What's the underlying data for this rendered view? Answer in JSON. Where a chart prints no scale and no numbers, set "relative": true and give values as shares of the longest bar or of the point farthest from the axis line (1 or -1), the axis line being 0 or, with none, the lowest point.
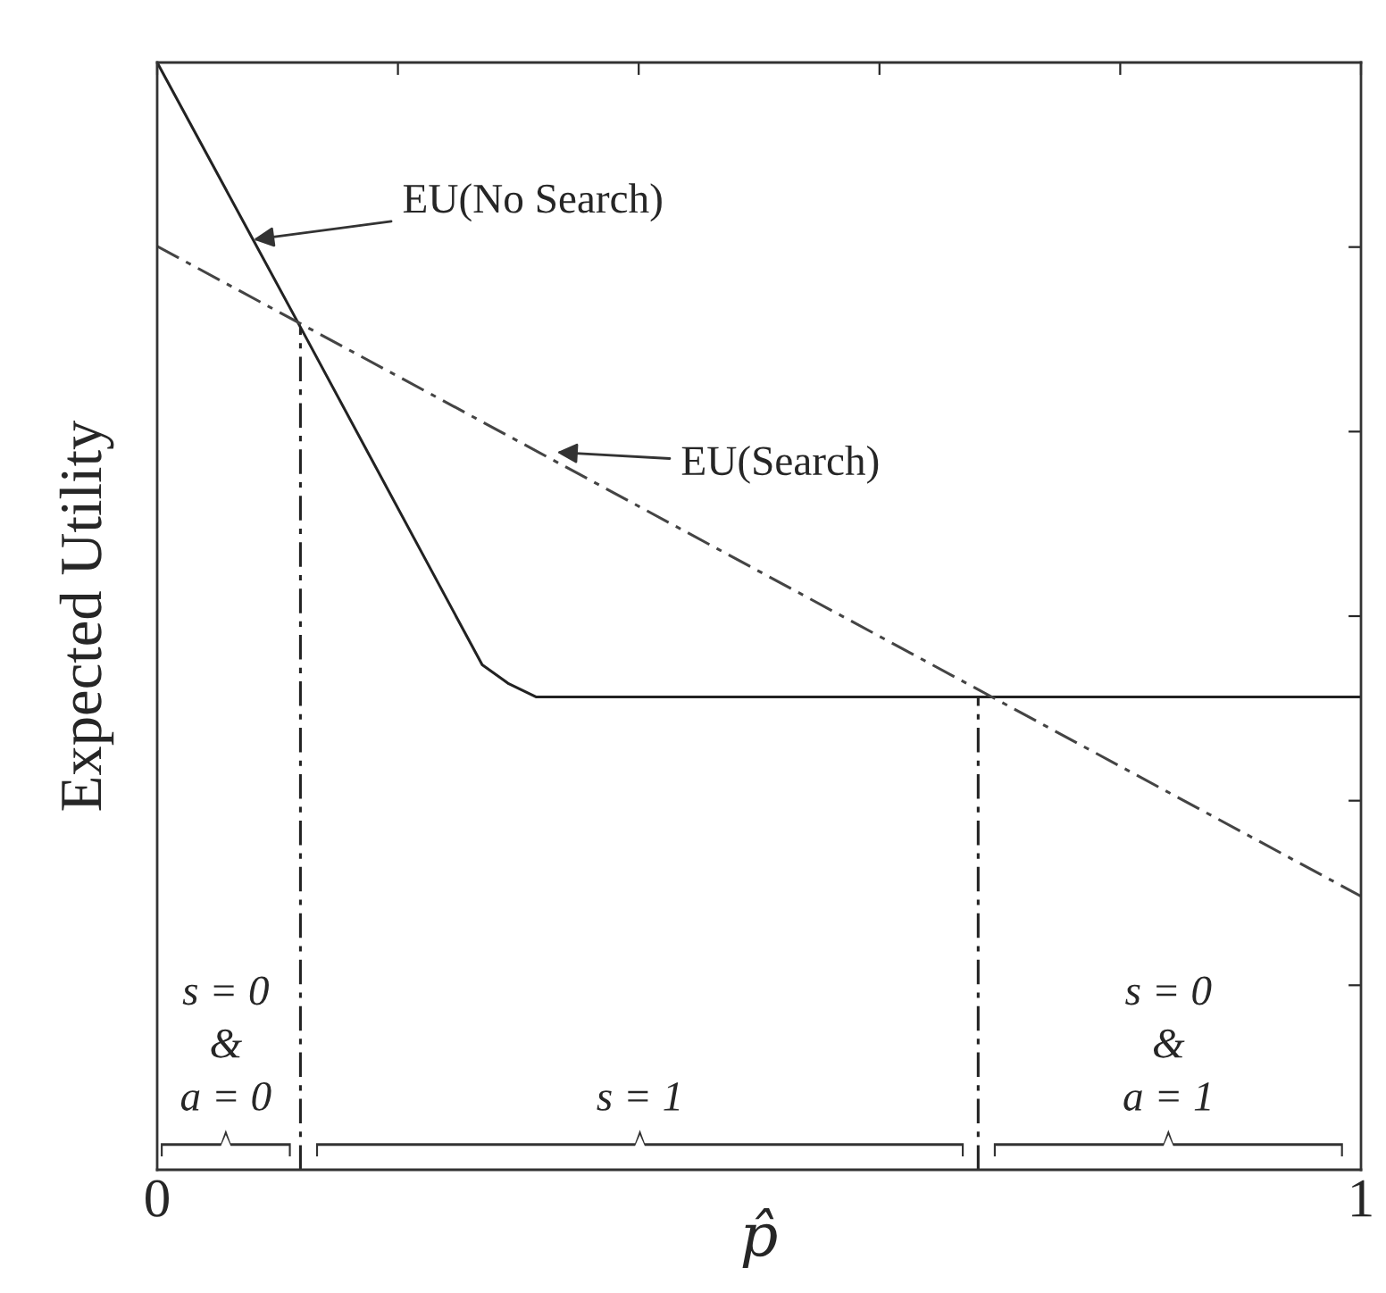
{
  "chart_data": {
    "type": "line",
    "relative": true,
    "xlabel": "p̂",
    "ylabel": "Expected Utility",
    "xlim": [
      0,
      1
    ],
    "xticks": [
      0,
      {
        "value": 0.2,
        "label": null
      },
      {
        "value": 0.4,
        "label": null
      },
      {
        "value": 0.6,
        "label": null
      },
      {
        "value": 0.8,
        "label": null
      },
      1
    ],
    "grid": false,
    "marker": "none",
    "series": [
      {
        "color": "#222222",
        "line_style": "solid",
        "x": [
          0,
          0.119,
          0.27,
          0.292,
          0.315,
          1
        ],
        "values": [
          1.0,
          0.761,
          0.456,
          0.439,
          0.427,
          0.427
        ]
      },
      {
        "color": "#444444",
        "line_style": "dashed",
        "x": [
          0,
          1
        ],
        "values": [
          0.834,
          0.247
        ]
      },
      {
        "color": "#222222",
        "line_style": "dashed",
        "x": [
          0.119,
          0.119
        ],
        "values": [
          0,
          0.761
        ]
      },
      {
        "color": "#222222",
        "line_style": "dashed",
        "x": [
          0.682,
          0.682
        ],
        "values": [
          0,
          0.427
        ]
      }
    ],
    "annotations": [
      {
        "text": "EU(No Search)",
        "x": 0.08,
        "y": 0.84
      },
      {
        "text": "EU(Search)",
        "x": 0.332,
        "y": 0.648
      },
      "s = 0\n&\na = 0",
      "s = 1",
      "s = 0\n&\na = 1"
    ]
  }
}
